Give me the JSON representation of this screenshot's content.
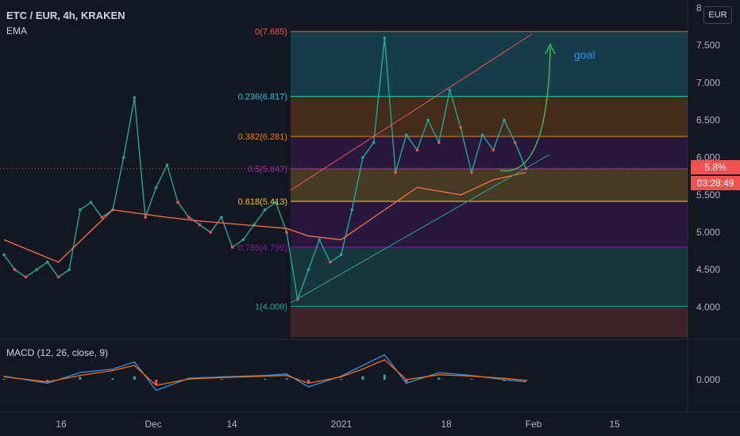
{
  "header": {
    "symbol_line": "ETC / EUR, 4h, KRAKEN",
    "indicator": "EMA"
  },
  "currency_button": "EUR",
  "price_tags": {
    "last_price": "5.8%",
    "countdown": "03:28:49",
    "last_color": "#ef5350"
  },
  "annotation": {
    "goal_text": "goal",
    "goal_color": "#2196f3"
  },
  "macd": {
    "label": "MACD (12, 26, close, 9)",
    "zero_label": "0.000"
  },
  "chart_data": {
    "type": "line",
    "title": "ETC / EUR, 4h, KRAKEN",
    "x_tick_labels": [
      "16",
      "Dec",
      "14",
      "2021",
      "18",
      "Feb",
      "15"
    ],
    "y_tick_labels": [
      "4.000",
      "4.500",
      "5.000",
      "5.500",
      "6.000",
      "6.500",
      "7.000",
      "7.500",
      "8"
    ],
    "ylim": [
      3.6,
      8.0
    ],
    "fib_levels": [
      {
        "label": "0(7.685)",
        "value": 7.685,
        "color": "#ef5350"
      },
      {
        "label": "0.236(6.817)",
        "value": 6.817,
        "color": "#26c6da"
      },
      {
        "label": "0.382(6.281)",
        "value": 6.281,
        "color": "#f57c00"
      },
      {
        "label": "0.5(5.847)",
        "value": 5.847,
        "color": "#9c27b0"
      },
      {
        "label": "0.618(5.413)",
        "value": 5.413,
        "color": "#fbc02d"
      },
      {
        "label": "0.786(4.799)",
        "value": 4.799,
        "color": "#7b1fa2"
      },
      {
        "label": "1(4.009)",
        "value": 4.009,
        "color": "#26a69a"
      }
    ],
    "price_series": {
      "name": "ETC/EUR",
      "t": [
        0,
        2,
        4,
        6,
        8,
        10,
        12,
        14,
        16,
        18,
        20,
        22,
        24,
        26,
        28,
        30,
        32,
        34,
        36,
        38,
        40,
        42,
        44,
        46,
        48,
        50,
        52,
        54,
        56,
        58,
        60,
        62,
        64,
        66,
        68,
        70,
        72,
        74,
        76,
        78,
        80,
        82,
        84,
        86,
        88,
        90,
        92,
        94,
        96
      ],
      "values": [
        4.7,
        4.5,
        4.4,
        4.5,
        4.6,
        4.4,
        4.5,
        5.3,
        5.4,
        5.2,
        5.3,
        6.0,
        6.8,
        5.2,
        5.6,
        5.9,
        5.4,
        5.2,
        5.1,
        5.0,
        5.2,
        4.8,
        4.9,
        5.1,
        5.3,
        5.4,
        5.0,
        4.1,
        4.5,
        4.9,
        4.6,
        4.7,
        5.3,
        6.0,
        6.2,
        7.6,
        5.8,
        6.3,
        6.1,
        6.5,
        6.2,
        6.9,
        6.4,
        5.8,
        6.3,
        6.1,
        6.5,
        6.2,
        5.85
      ]
    },
    "ema_series": {
      "name": "EMA",
      "t": [
        0,
        10,
        20,
        30,
        36,
        44,
        52,
        56,
        62,
        68,
        76,
        84,
        90,
        96
      ],
      "values": [
        4.9,
        4.6,
        5.3,
        5.2,
        5.15,
        5.1,
        5.05,
        4.95,
        4.9,
        5.2,
        5.6,
        5.5,
        5.7,
        5.8
      ]
    },
    "macd_series": {
      "t": [
        0,
        8,
        14,
        20,
        24,
        28,
        34,
        40,
        48,
        52,
        56,
        62,
        66,
        70,
        74,
        80,
        86,
        92,
        96
      ],
      "macd": [
        0.05,
        -0.05,
        0.1,
        0.15,
        0.25,
        -0.15,
        0.02,
        0.04,
        0.06,
        0.08,
        -0.1,
        0.05,
        0.2,
        0.35,
        -0.05,
        0.1,
        0.06,
        0.0,
        -0.03
      ],
      "signal": [
        0.04,
        -0.03,
        0.06,
        0.13,
        0.2,
        -0.08,
        0.01,
        0.03,
        0.05,
        0.06,
        -0.05,
        0.04,
        0.15,
        0.28,
        0.0,
        0.07,
        0.05,
        0.02,
        -0.01
      ]
    }
  }
}
